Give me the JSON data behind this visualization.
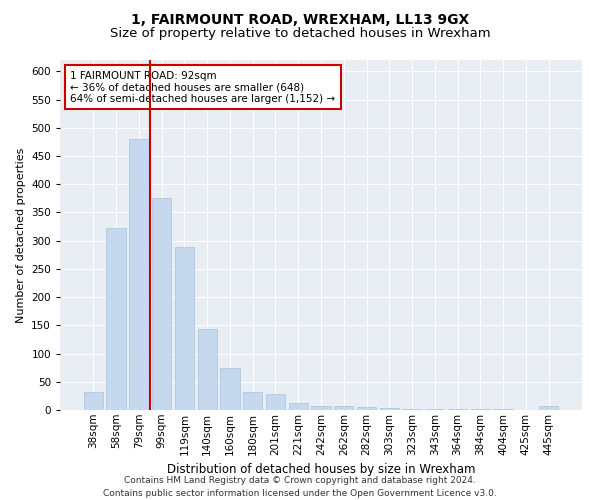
{
  "title": "1, FAIRMOUNT ROAD, WREXHAM, LL13 9GX",
  "subtitle": "Size of property relative to detached houses in Wrexham",
  "xlabel": "Distribution of detached houses by size in Wrexham",
  "ylabel": "Number of detached properties",
  "categories": [
    "38sqm",
    "58sqm",
    "79sqm",
    "99sqm",
    "119sqm",
    "140sqm",
    "160sqm",
    "180sqm",
    "201sqm",
    "221sqm",
    "242sqm",
    "262sqm",
    "282sqm",
    "303sqm",
    "323sqm",
    "343sqm",
    "364sqm",
    "384sqm",
    "404sqm",
    "425sqm",
    "445sqm"
  ],
  "values": [
    32,
    322,
    480,
    375,
    288,
    143,
    75,
    32,
    28,
    13,
    7,
    7,
    5,
    3,
    2,
    2,
    1,
    1,
    1,
    0,
    7
  ],
  "bar_color": "#c5d8ed",
  "bar_edge_color": "#a8c4dc",
  "vline_color": "#cc0000",
  "annotation_text": "1 FAIRMOUNT ROAD: 92sqm\n← 36% of detached houses are smaller (648)\n64% of semi-detached houses are larger (1,152) →",
  "annotation_box_color": "#ffffff",
  "annotation_box_edge": "#cc0000",
  "ylim": [
    0,
    620
  ],
  "yticks": [
    0,
    50,
    100,
    150,
    200,
    250,
    300,
    350,
    400,
    450,
    500,
    550,
    600
  ],
  "footer": "Contains HM Land Registry data © Crown copyright and database right 2024.\nContains public sector information licensed under the Open Government Licence v3.0.",
  "bg_color": "#e8eef4",
  "title_fontsize": 10,
  "subtitle_fontsize": 9.5,
  "xlabel_fontsize": 8.5,
  "ylabel_fontsize": 8,
  "tick_fontsize": 7.5,
  "footer_fontsize": 6.5,
  "annot_fontsize": 7.5
}
